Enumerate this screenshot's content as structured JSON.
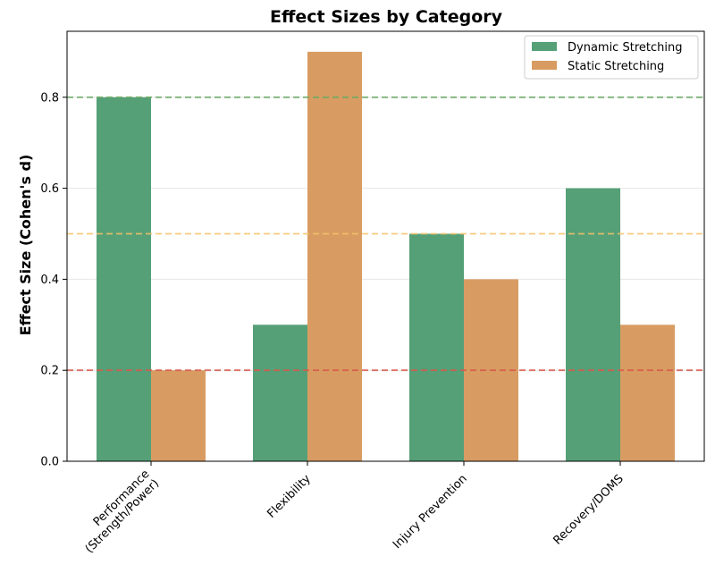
{
  "chart_data": {
    "type": "bar",
    "title": "Effect Sizes by Category",
    "xlabel": "",
    "ylabel": "Effect Size (Cohen's d)",
    "categories": [
      "Performance\n(Strength/Power)",
      "Flexibility",
      "Injury Prevention",
      "Recovery/DOMS"
    ],
    "series": [
      {
        "name": "Dynamic Stretching",
        "values": [
          0.8,
          0.3,
          0.5,
          0.6
        ],
        "color": "#55a077"
      },
      {
        "name": "Static Stretching",
        "values": [
          0.2,
          0.9,
          0.4,
          0.3
        ],
        "color": "#d89c62"
      }
    ],
    "ylim": [
      0,
      0.945
    ],
    "yticks": [
      "0.0",
      "0.2",
      "0.4",
      "0.6",
      "0.8"
    ],
    "reference_lines": [
      {
        "value": 0.2,
        "color": "#d9584a"
      },
      {
        "value": 0.5,
        "color": "#f5c26b"
      },
      {
        "value": 0.8,
        "color": "#6aaa64"
      }
    ],
    "grid": true,
    "legend": "top-right"
  }
}
